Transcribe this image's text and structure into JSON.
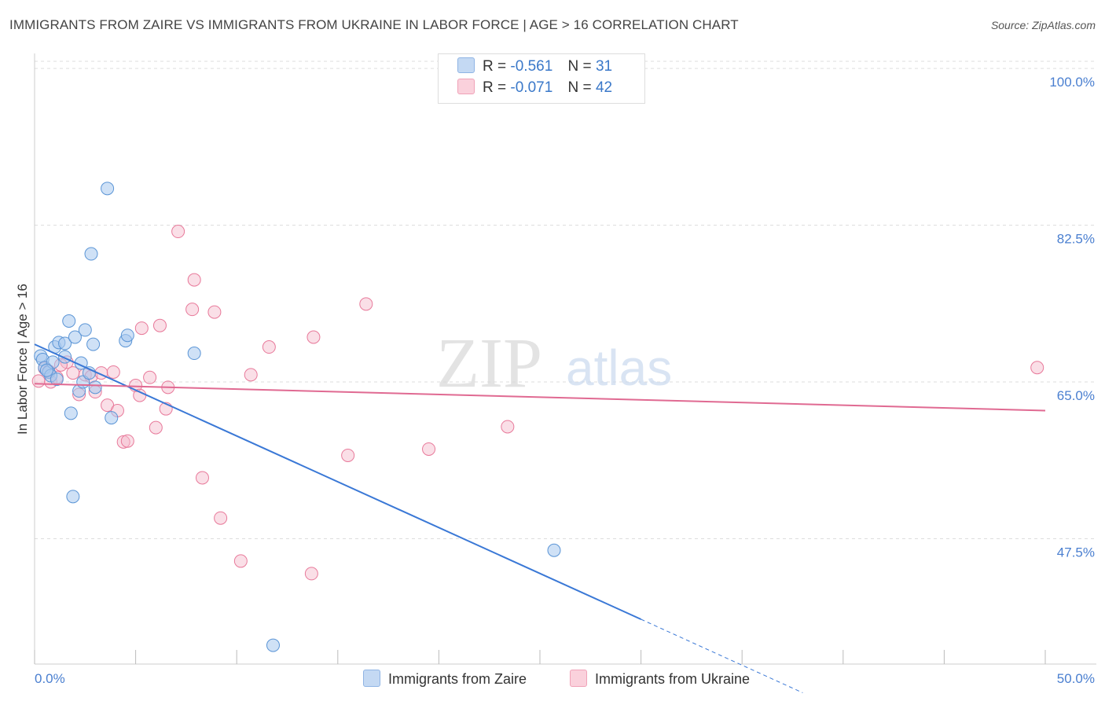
{
  "title": "IMMIGRANTS FROM ZAIRE VS IMMIGRANTS FROM UKRAINE IN LABOR FORCE | AGE > 16 CORRELATION CHART",
  "source": "Source: ZipAtlas.com",
  "watermark": {
    "zip": "ZIP",
    "atlas": "atlas"
  },
  "legend_box": {
    "rows": [
      {
        "r_label": "R =",
        "r_value": "-0.561",
        "n_label": "N =",
        "n_value": "31",
        "color": "#a8c8ee"
      },
      {
        "r_label": "R =",
        "r_value": "-0.071",
        "n_label": "N =",
        "n_value": "42",
        "color": "#f4b8c9"
      }
    ]
  },
  "colors": {
    "zaire_fill": "#a8c8ee",
    "zaire_stroke": "#5b95d6",
    "zaire_line": "#3a78d6",
    "ukraine_fill": "#f4b8c9",
    "ukraine_stroke": "#e8799a",
    "ukraine_line": "#e06a92",
    "tick_label": "#4a7fd0",
    "grid": "#dddddd"
  },
  "chart_data": {
    "type": "scatter",
    "title": "IMMIGRANTS FROM ZAIRE VS IMMIGRANTS FROM UKRAINE IN LABOR FORCE | AGE > 16 CORRELATION CHART",
    "xlabel": "",
    "ylabel": "In Labor Force | Age > 16",
    "xlim": [
      0,
      50
    ],
    "ylim": [
      33.5,
      101.5
    ],
    "x_ticks": [
      "0.0%",
      "50.0%"
    ],
    "y_ticks": [
      {
        "value": 100,
        "label": "100.0%"
      },
      {
        "value": 82.5,
        "label": "82.5%"
      },
      {
        "value": 65,
        "label": "65.0%"
      },
      {
        "value": 47.5,
        "label": "47.5%"
      }
    ],
    "grid": "horizontal dashed",
    "legend_placement": "bottom-center",
    "series": [
      {
        "name": "Immigrants from Zaire",
        "points": [
          [
            0.3,
            67.9
          ],
          [
            0.4,
            67.5
          ],
          [
            0.5,
            66.6
          ],
          [
            0.7,
            66.1
          ],
          [
            0.8,
            65.7
          ],
          [
            0.9,
            67.2
          ],
          [
            1.0,
            68.9
          ],
          [
            1.1,
            65.3
          ],
          [
            1.2,
            69.4
          ],
          [
            1.5,
            67.8
          ],
          [
            1.5,
            69.3
          ],
          [
            1.7,
            71.8
          ],
          [
            1.8,
            61.5
          ],
          [
            1.9,
            52.2
          ],
          [
            2.0,
            70.0
          ],
          [
            2.2,
            64.0
          ],
          [
            2.3,
            67.1
          ],
          [
            2.4,
            65.0
          ],
          [
            2.5,
            70.8
          ],
          [
            2.7,
            66.0
          ],
          [
            2.9,
            69.2
          ],
          [
            3.0,
            64.4
          ],
          [
            3.6,
            86.6
          ],
          [
            3.8,
            61.0
          ],
          [
            2.8,
            79.3
          ],
          [
            4.5,
            69.6
          ],
          [
            4.6,
            70.2
          ],
          [
            7.9,
            68.2
          ],
          [
            11.8,
            35.6
          ],
          [
            25.7,
            46.2
          ],
          [
            0.6,
            66.3
          ]
        ],
        "trend": {
          "x1": 0.0,
          "y1": 69.2,
          "x2": 30.0,
          "y2": 38.5,
          "dashed_to_x": 38.0,
          "dashed_to_y": 30.3
        }
      },
      {
        "name": "Immigrants from Ukraine",
        "points": [
          [
            0.2,
            65.1
          ],
          [
            0.5,
            66.5
          ],
          [
            0.7,
            66.2
          ],
          [
            0.8,
            65.0
          ],
          [
            1.1,
            65.5
          ],
          [
            1.6,
            67.2
          ],
          [
            1.9,
            66.0
          ],
          [
            2.2,
            63.6
          ],
          [
            2.5,
            65.8
          ],
          [
            2.8,
            65.6
          ],
          [
            3.0,
            63.9
          ],
          [
            3.3,
            66.0
          ],
          [
            3.6,
            62.4
          ],
          [
            3.9,
            66.1
          ],
          [
            4.1,
            61.8
          ],
          [
            4.4,
            58.3
          ],
          [
            4.6,
            58.4
          ],
          [
            5.0,
            64.6
          ],
          [
            5.2,
            63.5
          ],
          [
            5.3,
            71.0
          ],
          [
            5.7,
            65.5
          ],
          [
            6.0,
            59.9
          ],
          [
            6.2,
            71.3
          ],
          [
            6.5,
            62.0
          ],
          [
            6.6,
            64.4
          ],
          [
            7.1,
            81.8
          ],
          [
            7.8,
            73.1
          ],
          [
            7.9,
            76.4
          ],
          [
            8.3,
            54.3
          ],
          [
            8.9,
            72.8
          ],
          [
            9.2,
            49.8
          ],
          [
            10.2,
            45.0
          ],
          [
            10.7,
            65.8
          ],
          [
            11.6,
            68.9
          ],
          [
            13.7,
            43.6
          ],
          [
            13.8,
            70.0
          ],
          [
            15.5,
            56.8
          ],
          [
            16.4,
            73.7
          ],
          [
            19.5,
            57.5
          ],
          [
            23.4,
            60.0
          ],
          [
            49.6,
            66.6
          ],
          [
            1.3,
            66.9
          ]
        ],
        "trend": {
          "x1": 0.0,
          "y1": 64.8,
          "x2": 50.0,
          "y2": 61.8
        }
      }
    ]
  },
  "bottom_legend": {
    "items": [
      {
        "label": "Immigrants from Zaire",
        "color": "#a8c8ee"
      },
      {
        "label": "Immigrants from Ukraine",
        "color": "#f4b8c9"
      }
    ]
  }
}
